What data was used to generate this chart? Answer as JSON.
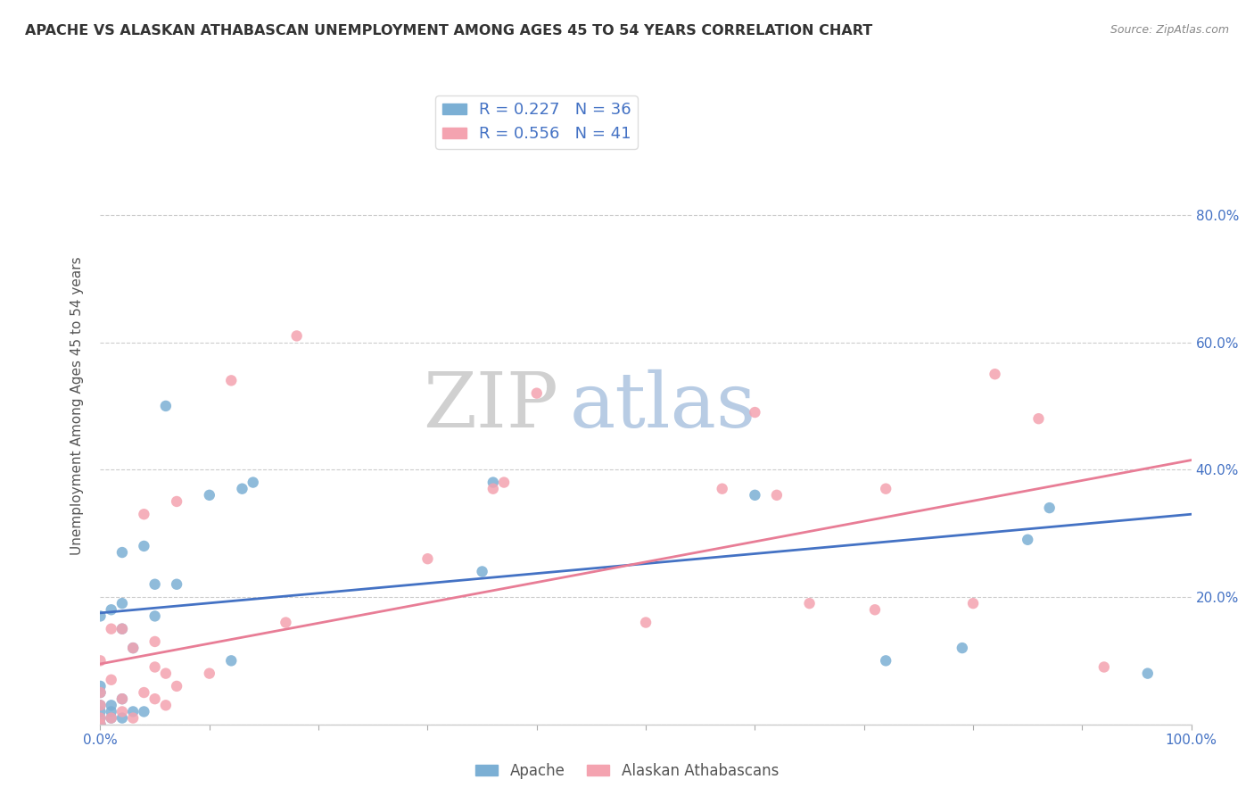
{
  "title": "APACHE VS ALASKAN ATHABASCAN UNEMPLOYMENT AMONG AGES 45 TO 54 YEARS CORRELATION CHART",
  "source": "Source: ZipAtlas.com",
  "ylabel": "Unemployment Among Ages 45 to 54 years",
  "xlim": [
    0,
    1.0
  ],
  "ylim": [
    0,
    1.0
  ],
  "xticks": [
    0.0,
    0.1,
    0.2,
    0.3,
    0.4,
    0.5,
    0.6,
    0.7,
    0.8,
    0.9,
    1.0
  ],
  "yticks": [
    0.0,
    0.2,
    0.4,
    0.6,
    0.8
  ],
  "right_yticks": [
    0.2,
    0.4,
    0.6,
    0.8
  ],
  "right_yticklabels": [
    "20.0%",
    "40.0%",
    "60.0%",
    "80.0%"
  ],
  "apache_color": "#7bafd4",
  "athabascan_color": "#f4a3b0",
  "apache_line_color": "#4472c4",
  "athabascan_line_color": "#e87d96",
  "apache_R": 0.227,
  "apache_N": 36,
  "athabascan_R": 0.556,
  "athabascan_N": 41,
  "legend_label_apache": "Apache",
  "legend_label_athabascan": "Alaskan Athabascans",
  "background_color": "#ffffff",
  "grid_color": "#cccccc",
  "apache_x": [
    0.0,
    0.0,
    0.0,
    0.0,
    0.0,
    0.0,
    0.0,
    0.01,
    0.01,
    0.01,
    0.01,
    0.02,
    0.02,
    0.02,
    0.02,
    0.02,
    0.03,
    0.03,
    0.04,
    0.04,
    0.05,
    0.05,
    0.06,
    0.07,
    0.1,
    0.12,
    0.13,
    0.14,
    0.35,
    0.36,
    0.6,
    0.72,
    0.79,
    0.85,
    0.87,
    0.96
  ],
  "apache_y": [
    0.0,
    0.01,
    0.02,
    0.03,
    0.05,
    0.06,
    0.17,
    0.01,
    0.02,
    0.03,
    0.18,
    0.01,
    0.04,
    0.15,
    0.19,
    0.27,
    0.02,
    0.12,
    0.02,
    0.28,
    0.17,
    0.22,
    0.5,
    0.22,
    0.36,
    0.1,
    0.37,
    0.38,
    0.24,
    0.38,
    0.36,
    0.1,
    0.12,
    0.29,
    0.34,
    0.08
  ],
  "athabascan_x": [
    0.0,
    0.0,
    0.0,
    0.0,
    0.0,
    0.01,
    0.01,
    0.01,
    0.02,
    0.02,
    0.02,
    0.03,
    0.03,
    0.04,
    0.04,
    0.05,
    0.05,
    0.05,
    0.06,
    0.06,
    0.07,
    0.07,
    0.1,
    0.12,
    0.17,
    0.18,
    0.3,
    0.36,
    0.37,
    0.4,
    0.5,
    0.57,
    0.6,
    0.62,
    0.65,
    0.71,
    0.72,
    0.8,
    0.82,
    0.86,
    0.92
  ],
  "athabascan_y": [
    0.0,
    0.01,
    0.03,
    0.05,
    0.1,
    0.01,
    0.07,
    0.15,
    0.02,
    0.04,
    0.15,
    0.01,
    0.12,
    0.05,
    0.33,
    0.04,
    0.09,
    0.13,
    0.03,
    0.08,
    0.06,
    0.35,
    0.08,
    0.54,
    0.16,
    0.61,
    0.26,
    0.37,
    0.38,
    0.52,
    0.16,
    0.37,
    0.49,
    0.36,
    0.19,
    0.18,
    0.37,
    0.19,
    0.55,
    0.48,
    0.09
  ],
  "apache_line_y_intercept": 0.175,
  "apache_line_slope": 0.155,
  "athabascan_line_y_intercept": 0.095,
  "athabascan_line_slope": 0.32,
  "marker_size": 80
}
